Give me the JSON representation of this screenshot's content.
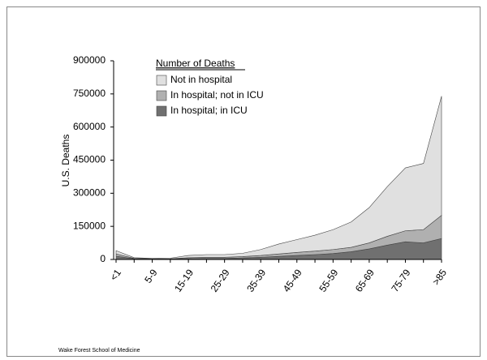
{
  "chart_data": {
    "type": "stacked_area",
    "y_label": "U.S. Deaths",
    "legend_title": "Number of Deaths",
    "footer": "Wake Forest School of Medicine",
    "categories": [
      "<1",
      null,
      "5-9",
      null,
      "15-19",
      null,
      "25-29",
      null,
      "35-39",
      null,
      "45-49",
      null,
      "55-59",
      null,
      "65-69",
      null,
      "75-79",
      null,
      ">85"
    ],
    "series": [
      {
        "name": "In hospital; in ICU",
        "color": "#707070",
        "values": [
          15000,
          3000,
          2000,
          2000,
          4000,
          5000,
          5000,
          7000,
          10000,
          14000,
          18000,
          22000,
          27000,
          35000,
          48000,
          65000,
          80000,
          75000,
          95000
        ]
      },
      {
        "name": "In hospital; not in ICU",
        "color": "#b0b0b0",
        "values": [
          10000,
          2000,
          1000,
          1000,
          4000,
          5000,
          5000,
          6000,
          8000,
          11000,
          14000,
          16000,
          18000,
          20000,
          27000,
          40000,
          50000,
          60000,
          105000
        ]
      },
      {
        "name": "Not in hospital",
        "color": "#e0e0e0",
        "values": [
          15000,
          3000,
          2000,
          3000,
          10000,
          12000,
          12000,
          15000,
          27000,
          45000,
          58000,
          72000,
          90000,
          115000,
          160000,
          225000,
          285000,
          300000,
          540000
        ]
      }
    ],
    "ylim": [
      0,
      900000
    ],
    "yticks": [
      0,
      150000,
      300000,
      450000,
      600000,
      750000,
      900000
    ]
  }
}
